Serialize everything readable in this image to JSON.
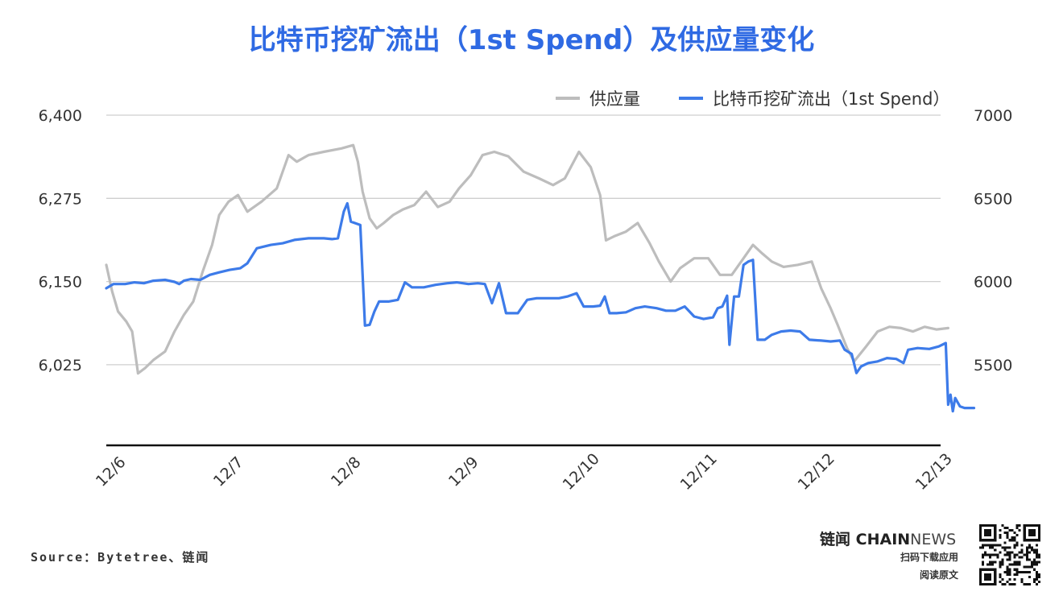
{
  "chart_data": {
    "type": "line",
    "title": "比特币挖矿流出（1st Spend）及供应量变化",
    "x_ticks": [
      "12/6",
      "12/7",
      "12/8",
      "12/9",
      "12/10",
      "12/11",
      "12/12",
      "12/13"
    ],
    "y_left": {
      "ticks": [
        "6,400",
        "6,275",
        "6,150",
        "6,025"
      ],
      "range": [
        5900,
        6400
      ]
    },
    "y_right": {
      "ticks": [
        "7000",
        "6500",
        "6000",
        "5500"
      ],
      "range": [
        5000,
        7000
      ]
    },
    "grid": true,
    "legend_position": "top-right",
    "series": [
      {
        "name": "供应量",
        "axis": "left",
        "color": "#BDBDBD",
        "points": [
          [
            0.0,
            6175
          ],
          [
            0.05,
            6135
          ],
          [
            0.1,
            6105
          ],
          [
            0.17,
            6090
          ],
          [
            0.22,
            6075
          ],
          [
            0.27,
            6012
          ],
          [
            0.33,
            6020
          ],
          [
            0.4,
            6032
          ],
          [
            0.5,
            6045
          ],
          [
            0.58,
            6075
          ],
          [
            0.66,
            6100
          ],
          [
            0.74,
            6120
          ],
          [
            0.82,
            6165
          ],
          [
            0.9,
            6205
          ],
          [
            0.96,
            6250
          ],
          [
            1.04,
            6270
          ],
          [
            1.12,
            6280
          ],
          [
            1.2,
            6255
          ],
          [
            1.32,
            6270
          ],
          [
            1.45,
            6290
          ],
          [
            1.55,
            6340
          ],
          [
            1.62,
            6330
          ],
          [
            1.72,
            6340
          ],
          [
            1.85,
            6345
          ],
          [
            2.0,
            6350
          ],
          [
            2.1,
            6355
          ],
          [
            2.14,
            6330
          ],
          [
            2.18,
            6285
          ],
          [
            2.24,
            6245
          ],
          [
            2.3,
            6230
          ],
          [
            2.36,
            6238
          ],
          [
            2.44,
            6250
          ],
          [
            2.52,
            6258
          ],
          [
            2.62,
            6265
          ],
          [
            2.72,
            6285
          ],
          [
            2.82,
            6262
          ],
          [
            2.92,
            6270
          ],
          [
            3.0,
            6290
          ],
          [
            3.1,
            6310
          ],
          [
            3.2,
            6340
          ],
          [
            3.3,
            6345
          ],
          [
            3.42,
            6338
          ],
          [
            3.55,
            6315
          ],
          [
            3.68,
            6305
          ],
          [
            3.8,
            6295
          ],
          [
            3.9,
            6305
          ],
          [
            4.02,
            6345
          ],
          [
            4.12,
            6322
          ],
          [
            4.2,
            6280
          ],
          [
            4.25,
            6212
          ],
          [
            4.32,
            6218
          ],
          [
            4.42,
            6225
          ],
          [
            4.52,
            6238
          ],
          [
            4.62,
            6208
          ],
          [
            4.7,
            6180
          ],
          [
            4.8,
            6150
          ],
          [
            4.88,
            6170
          ],
          [
            5.0,
            6185
          ],
          [
            5.12,
            6185
          ],
          [
            5.22,
            6160
          ],
          [
            5.32,
            6160
          ],
          [
            5.42,
            6185
          ],
          [
            5.5,
            6205
          ],
          [
            5.58,
            6192
          ],
          [
            5.66,
            6180
          ],
          [
            5.76,
            6172
          ],
          [
            5.88,
            6175
          ],
          [
            6.0,
            6180
          ],
          [
            6.08,
            6140
          ],
          [
            6.16,
            6110
          ],
          [
            6.22,
            6085
          ],
          [
            6.3,
            6050
          ],
          [
            6.36,
            6030
          ],
          [
            6.46,
            6052
          ],
          [
            6.56,
            6075
          ],
          [
            6.66,
            6082
          ],
          [
            6.76,
            6080
          ],
          [
            6.86,
            6075
          ],
          [
            6.96,
            6082
          ],
          [
            7.06,
            6078
          ],
          [
            7.16,
            6080
          ]
        ]
      },
      {
        "name": "比特币挖矿流出（1st Spend）",
        "axis": "right",
        "color": "#3D7BE9",
        "points": [
          [
            0.0,
            5960
          ],
          [
            0.06,
            5985
          ],
          [
            0.16,
            5985
          ],
          [
            0.24,
            5995
          ],
          [
            0.32,
            5990
          ],
          [
            0.4,
            6005
          ],
          [
            0.5,
            6010
          ],
          [
            0.58,
            5998
          ],
          [
            0.62,
            5985
          ],
          [
            0.66,
            6005
          ],
          [
            0.72,
            6015
          ],
          [
            0.8,
            6010
          ],
          [
            0.88,
            6040
          ],
          [
            0.96,
            6055
          ],
          [
            1.05,
            6070
          ],
          [
            1.14,
            6080
          ],
          [
            1.2,
            6110
          ],
          [
            1.28,
            6200
          ],
          [
            1.34,
            6210
          ],
          [
            1.4,
            6220
          ],
          [
            1.5,
            6230
          ],
          [
            1.6,
            6250
          ],
          [
            1.72,
            6260
          ],
          [
            1.85,
            6260
          ],
          [
            1.92,
            6255
          ],
          [
            1.97,
            6260
          ],
          [
            2.02,
            6420
          ],
          [
            2.05,
            6470
          ],
          [
            2.08,
            6360
          ],
          [
            2.12,
            6350
          ],
          [
            2.16,
            6340
          ],
          [
            2.2,
            5735
          ],
          [
            2.24,
            5740
          ],
          [
            2.28,
            5820
          ],
          [
            2.32,
            5880
          ],
          [
            2.4,
            5880
          ],
          [
            2.48,
            5890
          ],
          [
            2.54,
            5995
          ],
          [
            2.6,
            5965
          ],
          [
            2.7,
            5965
          ],
          [
            2.8,
            5980
          ],
          [
            2.9,
            5990
          ],
          [
            2.98,
            5995
          ],
          [
            3.08,
            5985
          ],
          [
            3.16,
            5990
          ],
          [
            3.22,
            5985
          ],
          [
            3.28,
            5870
          ],
          [
            3.34,
            5990
          ],
          [
            3.4,
            5810
          ],
          [
            3.5,
            5810
          ],
          [
            3.58,
            5890
          ],
          [
            3.66,
            5900
          ],
          [
            3.75,
            5900
          ],
          [
            3.85,
            5900
          ],
          [
            3.92,
            5910
          ],
          [
            4.0,
            5930
          ],
          [
            4.06,
            5850
          ],
          [
            4.14,
            5850
          ],
          [
            4.2,
            5855
          ],
          [
            4.24,
            5910
          ],
          [
            4.28,
            5810
          ],
          [
            4.34,
            5810
          ],
          [
            4.42,
            5815
          ],
          [
            4.5,
            5840
          ],
          [
            4.58,
            5850
          ],
          [
            4.68,
            5840
          ],
          [
            4.76,
            5825
          ],
          [
            4.84,
            5825
          ],
          [
            4.92,
            5850
          ],
          [
            5.0,
            5790
          ],
          [
            5.08,
            5775
          ],
          [
            5.16,
            5785
          ],
          [
            5.2,
            5840
          ],
          [
            5.24,
            5850
          ],
          [
            5.28,
            5915
          ],
          [
            5.3,
            5620
          ],
          [
            5.34,
            5910
          ],
          [
            5.38,
            5910
          ],
          [
            5.42,
            6100
          ],
          [
            5.46,
            6120
          ],
          [
            5.5,
            6130
          ],
          [
            5.54,
            5650
          ],
          [
            5.6,
            5650
          ],
          [
            5.66,
            5680
          ],
          [
            5.74,
            5700
          ],
          [
            5.82,
            5705
          ],
          [
            5.9,
            5700
          ],
          [
            5.98,
            5650
          ],
          [
            6.08,
            5645
          ],
          [
            6.16,
            5640
          ],
          [
            6.24,
            5645
          ],
          [
            6.28,
            5590
          ],
          [
            6.34,
            5565
          ],
          [
            6.38,
            5450
          ],
          [
            6.42,
            5490
          ],
          [
            6.48,
            5510
          ],
          [
            6.56,
            5520
          ],
          [
            6.64,
            5540
          ],
          [
            6.72,
            5535
          ],
          [
            6.78,
            5510
          ],
          [
            6.82,
            5590
          ],
          [
            6.9,
            5600
          ],
          [
            7.0,
            5595
          ],
          [
            7.08,
            5610
          ],
          [
            7.14,
            5630
          ],
          [
            7.16,
            5260
          ],
          [
            7.18,
            5320
          ],
          [
            7.2,
            5220
          ],
          [
            7.22,
            5300
          ],
          [
            7.26,
            5250
          ],
          [
            7.3,
            5240
          ],
          [
            7.38,
            5240
          ]
        ]
      }
    ]
  },
  "source_text": "Source：Bytetree、链闻",
  "brand": {
    "name_cn": "链闻",
    "name_en_bold": "CHAIN",
    "name_en_light": "NEWS",
    "line1": "扫码下载应用",
    "line2": "阅读原文"
  }
}
